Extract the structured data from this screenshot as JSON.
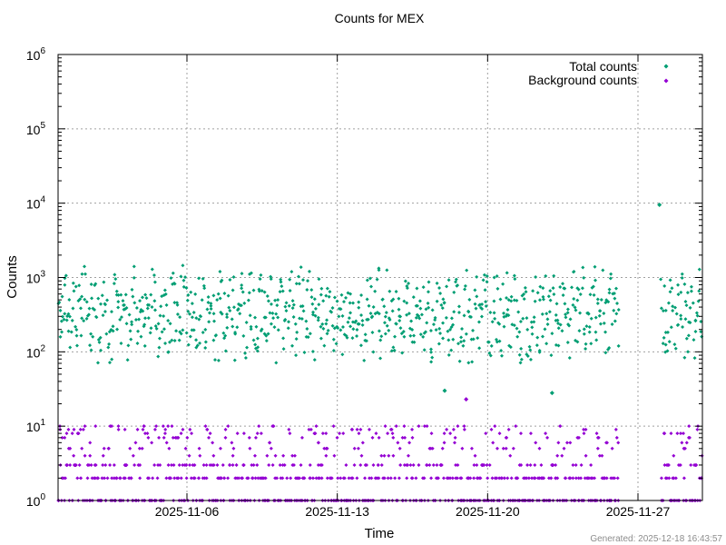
{
  "colors": {
    "total": "#009e73",
    "background": "#9400d3",
    "grid": "#a0a0a0"
  },
  "footer": {
    "text": "Generated: 2025-12-18 16:43:57"
  },
  "chart_data": {
    "type": "scatter",
    "title": "Counts for MEX",
    "xlabel": "Time",
    "ylabel": "Counts",
    "y_scale": "log",
    "ylim": [
      1,
      1000000
    ],
    "xlim": [
      "2025-10-31",
      "2025-11-30"
    ],
    "x_ticks": [
      "2025-11-06",
      "2025-11-13",
      "2025-11-20",
      "2025-11-27"
    ],
    "y_ticks": [
      {
        "base": "10",
        "exp": "0"
      },
      {
        "base": "10",
        "exp": "1"
      },
      {
        "base": "10",
        "exp": "2"
      },
      {
        "base": "10",
        "exp": "3"
      },
      {
        "base": "10",
        "exp": "4"
      },
      {
        "base": "10",
        "exp": "5"
      },
      {
        "base": "10",
        "exp": "6"
      }
    ],
    "grid": true,
    "legend_position": "top-right",
    "data_gaps": [
      [
        "2025-11-26",
        "2025-11-28"
      ]
    ],
    "series": [
      {
        "name": "Total counts",
        "color": "#009e73",
        "typical_range": [
          80,
          2000
        ],
        "peak": {
          "x": "2025-11-28",
          "y": 9500
        },
        "notable_points": [
          {
            "x": "2025-11-18",
            "y": 30
          },
          {
            "x": "2025-11-23",
            "y": 28
          }
        ]
      },
      {
        "name": "Background counts",
        "color": "#9400d3",
        "discrete_levels": [
          1,
          2,
          3,
          4,
          5,
          6,
          7,
          8,
          9,
          10
        ],
        "max": {
          "x": "2025-11-19",
          "y": 23
        }
      }
    ]
  }
}
